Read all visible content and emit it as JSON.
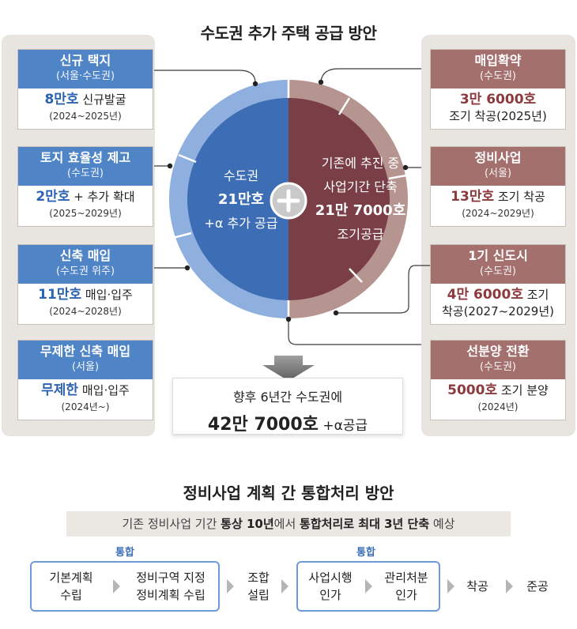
{
  "title": "수도권 추가 주택 공급 방안",
  "left_cards": [
    {
      "title": "신규 택지",
      "region": "(서울·수도권)",
      "num": "8만호",
      "text": " 신규발굴",
      "period": "(2024~2025년)"
    },
    {
      "title": "토지 효율성 제고",
      "region": "(수도권)",
      "num": "2만호",
      "text": " + 추가 확대",
      "period": "(2025~2029년)"
    },
    {
      "title": "신축 매입",
      "region": "(수도권 위주)",
      "num": "11만호",
      "text": " 매입·입주",
      "period": "(2024~2028년)"
    },
    {
      "title": "무제한 신축 매입",
      "region": "(서울)",
      "num": "무제한",
      "text": " 매입·입주",
      "period": "(2024년~)"
    }
  ],
  "right_cards": [
    {
      "title": "매입확약",
      "region": "(수도권)",
      "num": "3만 6000호",
      "text": "",
      "line2": "조기 착공(2025년)",
      "period": ""
    },
    {
      "title": "정비사업",
      "region": "(서울)",
      "num": "13만호",
      "text": " 조기 착공",
      "line2": "",
      "period": "(2024~2029년)"
    },
    {
      "title": "1기 신도시",
      "region": "(수도권)",
      "num": "4만 6000호",
      "text": " 조기",
      "line2": "착공(2027~2029년)",
      "period": ""
    },
    {
      "title": "선분양 전환",
      "region": "(수도권)",
      "num": "5000호",
      "text": " 조기 분양",
      "line2": "",
      "period": "(2024년)"
    }
  ],
  "circle": {
    "left_line1": "수도권",
    "left_line2": "21만호",
    "left_line3": "+α 추가 공급",
    "right_line1": "기존에 추진 중",
    "right_line2": "사업기간 단축",
    "right_line3": "21만 7000호",
    "right_line4": "조기공급",
    "plus": "+"
  },
  "summary": {
    "line1": "향후 6년간 수도권에",
    "line2_num": "42만 7000호",
    "line2_rest": " +α공급"
  },
  "process": {
    "title": "정비사업 계획 간 통합처리 방안",
    "desc_pre": "기존 정비사업 기간 ",
    "desc_b1": "통상 10년",
    "desc_mid": "에서 ",
    "desc_b2": "통합처리로 최대 3년 단축",
    "desc_post": " 예상",
    "group_label_1": "통합",
    "group_label_2": "통합",
    "step1_a": "기본계획",
    "step1_b": "수립",
    "step2_a": "정비구역 지정",
    "step2_b": "정비계획 수립",
    "step3_a": "조합",
    "step3_b": "설립",
    "step4_a": "사업시행",
    "step4_b": "인가",
    "step5_a": "관리처분",
    "step5_b": "인가",
    "step6": "착공",
    "step7": "준공"
  },
  "colors": {
    "blue_head": "#4f84c7",
    "blue_inner": "#3c6db5",
    "blue_ring": "#8fb0df",
    "red_head": "#a3706e",
    "red_inner": "#7a3e46",
    "red_ring": "#b69590"
  }
}
